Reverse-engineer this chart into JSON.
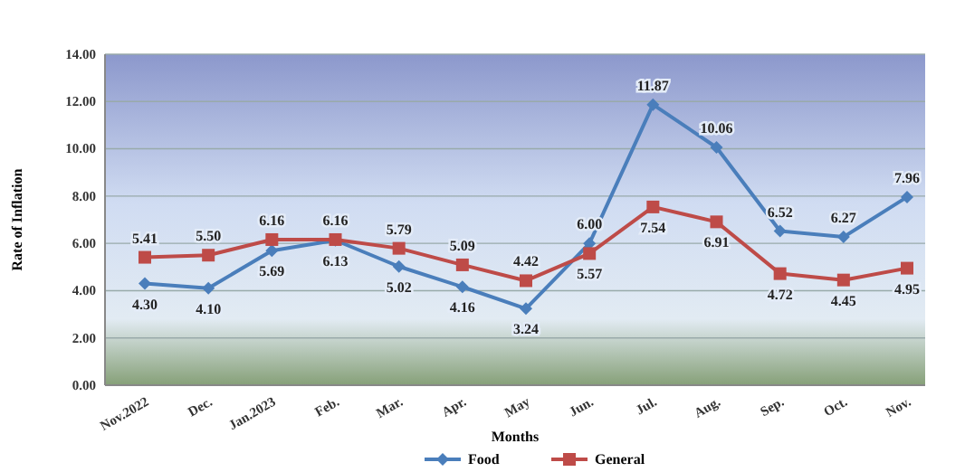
{
  "chart_data": {
    "type": "line",
    "xlabel": "Months",
    "ylabel": "Rate of Inflation",
    "categories": [
      "Nov.2022",
      "Dec.",
      "Jan.2023",
      "Feb.",
      "Mar.",
      "Apr.",
      "May",
      "Jun.",
      "Jul.",
      "Aug.",
      "Sep.",
      "Oct.",
      "Nov."
    ],
    "series": [
      {
        "name": "Food",
        "color": "#4a7ebb",
        "marker": "diamond",
        "values": [
          4.3,
          4.1,
          5.69,
          6.13,
          5.02,
          4.16,
          3.24,
          6.0,
          11.87,
          10.06,
          6.52,
          6.27,
          7.96
        ],
        "value_labels": [
          "4.30",
          "4.10",
          "5.69",
          "6.13",
          "5.02",
          "4.16",
          "3.24",
          "6.00",
          "11.87",
          "10.06",
          "6.52",
          "6.27",
          "7.96"
        ]
      },
      {
        "name": "General",
        "color": "#be4b48",
        "marker": "square",
        "values": [
          5.41,
          5.5,
          6.16,
          6.16,
          5.79,
          5.09,
          4.42,
          5.57,
          7.54,
          6.91,
          4.72,
          4.45,
          4.95
        ],
        "value_labels": [
          "5.41",
          "5.50",
          "6.16",
          "6.16",
          "5.79",
          "5.09",
          "4.42",
          "5.57",
          "7.54",
          "6.91",
          "4.72",
          "4.45",
          "4.95"
        ]
      }
    ],
    "ylim": [
      0,
      14
    ],
    "yticks": [
      {
        "value": 0,
        "label": "0.00"
      },
      {
        "value": 2,
        "label": "2.00"
      },
      {
        "value": 4,
        "label": "4.00"
      },
      {
        "value": 6,
        "label": "6.00"
      },
      {
        "value": 8,
        "label": "8.00"
      },
      {
        "value": 10,
        "label": "10.00"
      },
      {
        "value": 12,
        "label": "12.00"
      },
      {
        "value": 14,
        "label": "14.00"
      }
    ],
    "grid": "y",
    "legend": "bottom"
  }
}
